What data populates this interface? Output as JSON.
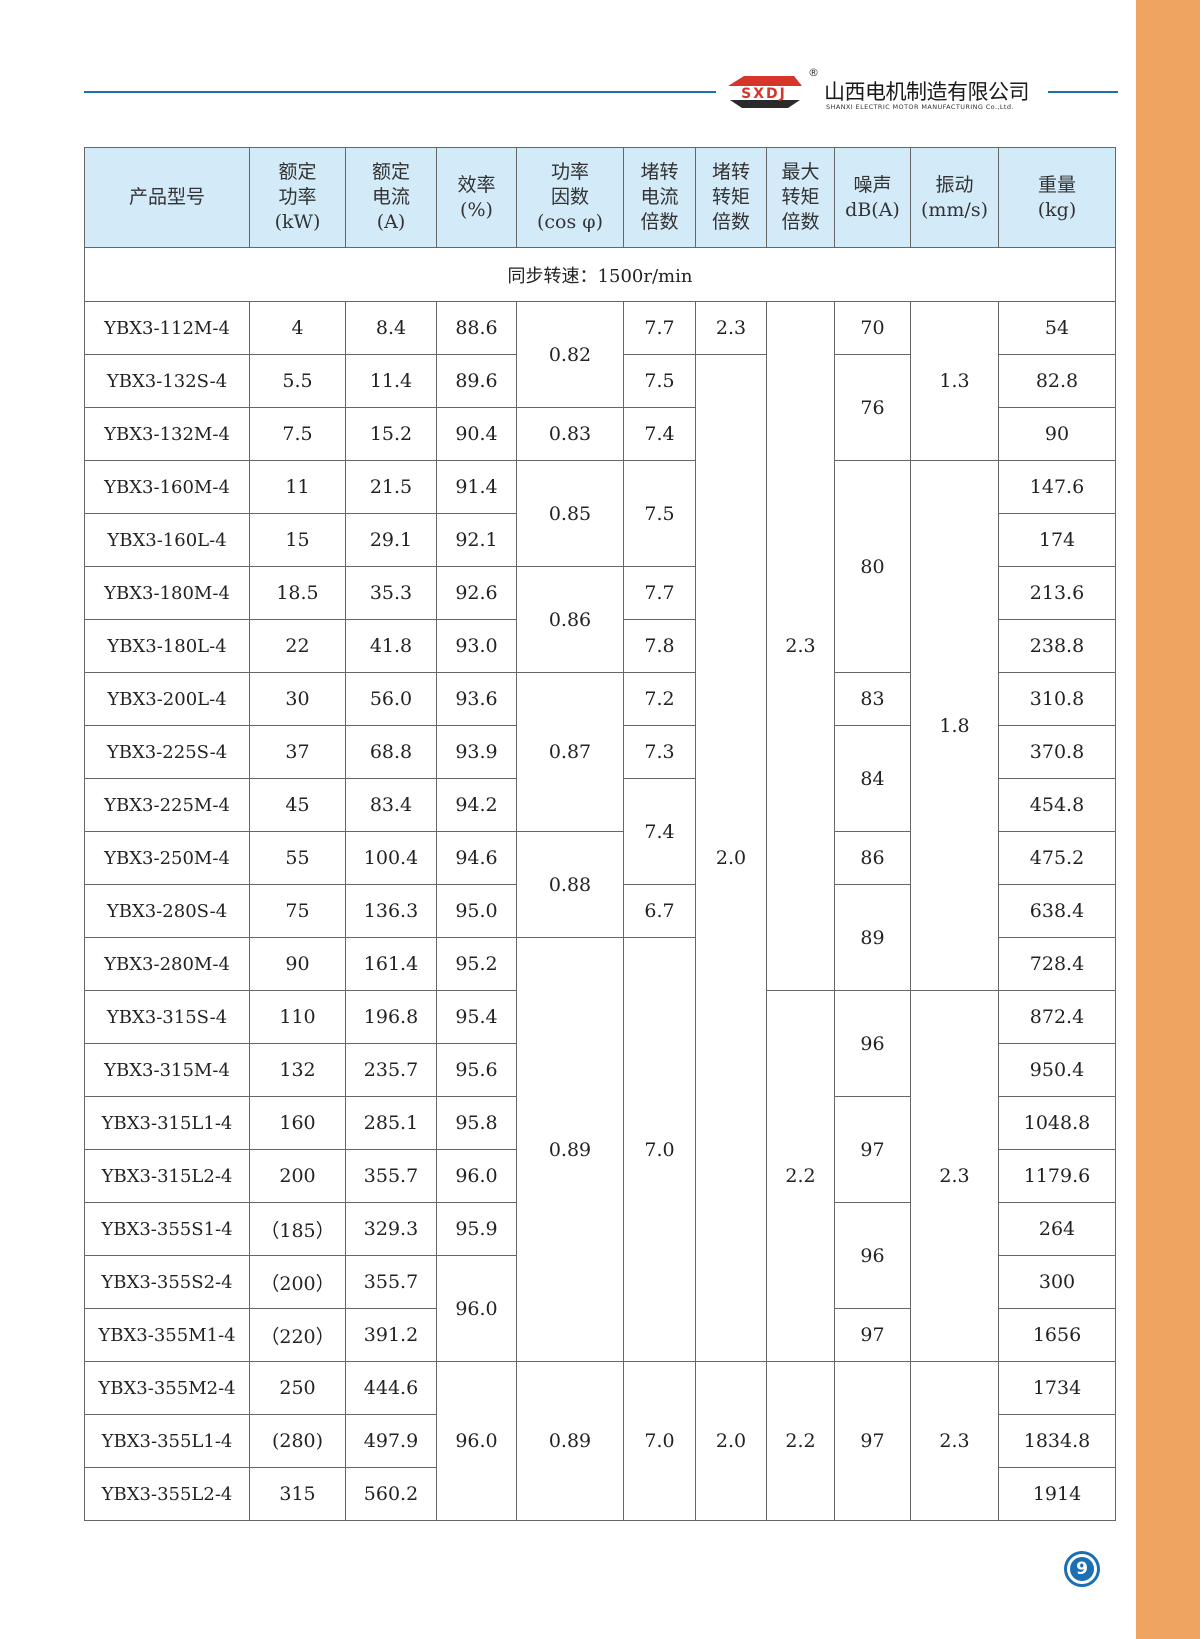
{
  "brand": {
    "logo_text": "SXDJ",
    "registered_mark": "®",
    "company_cn": "山西电机制造有限公司",
    "company_en": "SHANXI ELECTRIC MOTOR MANUFACTURING Co.,Ltd.",
    "colors": {
      "accent_blue": "#1b6fb3",
      "logo_red": "#d8352a",
      "side_strip": "#f0a462",
      "header_bg": "#d3eaf8"
    }
  },
  "table": {
    "headers": [
      "产品型号",
      "额定\n功率\n(kW)",
      "额定\n电流\n(A)",
      "效率\n(%)",
      "功率\n因数\n(cos φ)",
      "堵转\n电流\n倍数",
      "堵转\n转矩\n倍数",
      "最大\n转矩\n倍数",
      "噪声\ndB(A)",
      "振动\n(mm/s)",
      "重量\n(kg)"
    ],
    "section_label": "同步转速：1500r/min",
    "columns": [
      {
        "key": "model",
        "groups": [
          [
            "YBX3-112M-4",
            1
          ],
          [
            "YBX3-132S-4",
            1
          ],
          [
            "YBX3-132M-4",
            1
          ],
          [
            "YBX3-160M-4",
            1
          ],
          [
            "YBX3-160L-4",
            1
          ],
          [
            "YBX3-180M-4",
            1
          ],
          [
            "YBX3-180L-4",
            1
          ],
          [
            "YBX3-200L-4",
            1
          ],
          [
            "YBX3-225S-4",
            1
          ],
          [
            "YBX3-225M-4",
            1
          ],
          [
            "YBX3-250M-4",
            1
          ],
          [
            "YBX3-280S-4",
            1
          ],
          [
            "YBX3-280M-4",
            1
          ],
          [
            "YBX3-315S-4",
            1
          ],
          [
            "YBX3-315M-4",
            1
          ],
          [
            "YBX3-315L1-4",
            1
          ],
          [
            "YBX3-315L2-4",
            1
          ],
          [
            "YBX3-355S1-4",
            1
          ],
          [
            "YBX3-355S2-4",
            1
          ],
          [
            "YBX3-355M1-4",
            1
          ],
          [
            "YBX3-355M2-4",
            1
          ],
          [
            "YBX3-355L1-4",
            1
          ],
          [
            "YBX3-355L2-4",
            1
          ]
        ]
      },
      {
        "key": "rated_power_kw",
        "groups": [
          [
            "4",
            1
          ],
          [
            "5.5",
            1
          ],
          [
            "7.5",
            1
          ],
          [
            "11",
            1
          ],
          [
            "15",
            1
          ],
          [
            "18.5",
            1
          ],
          [
            "22",
            1
          ],
          [
            "30",
            1
          ],
          [
            "37",
            1
          ],
          [
            "45",
            1
          ],
          [
            "55",
            1
          ],
          [
            "75",
            1
          ],
          [
            "90",
            1
          ],
          [
            "110",
            1
          ],
          [
            "132",
            1
          ],
          [
            "160",
            1
          ],
          [
            "200",
            1
          ],
          [
            "（185）",
            1
          ],
          [
            "（200）",
            1
          ],
          [
            "（220）",
            1
          ],
          [
            "250",
            1
          ],
          [
            "(280)",
            1
          ],
          [
            "315",
            1
          ]
        ]
      },
      {
        "key": "rated_current_a",
        "groups": [
          [
            "8.4",
            1
          ],
          [
            "11.4",
            1
          ],
          [
            "15.2",
            1
          ],
          [
            "21.5",
            1
          ],
          [
            "29.1",
            1
          ],
          [
            "35.3",
            1
          ],
          [
            "41.8",
            1
          ],
          [
            "56.0",
            1
          ],
          [
            "68.8",
            1
          ],
          [
            "83.4",
            1
          ],
          [
            "100.4",
            1
          ],
          [
            "136.3",
            1
          ],
          [
            "161.4",
            1
          ],
          [
            "196.8",
            1
          ],
          [
            "235.7",
            1
          ],
          [
            "285.1",
            1
          ],
          [
            "355.7",
            1
          ],
          [
            "329.3",
            1
          ],
          [
            "355.7",
            1
          ],
          [
            "391.2",
            1
          ],
          [
            "444.6",
            1
          ],
          [
            "497.9",
            1
          ],
          [
            "560.2",
            1
          ]
        ]
      },
      {
        "key": "efficiency_pct",
        "groups": [
          [
            "88.6",
            1
          ],
          [
            "89.6",
            1
          ],
          [
            "90.4",
            1
          ],
          [
            "91.4",
            1
          ],
          [
            "92.1",
            1
          ],
          [
            "92.6",
            1
          ],
          [
            "93.0",
            1
          ],
          [
            "93.6",
            1
          ],
          [
            "93.9",
            1
          ],
          [
            "94.2",
            1
          ],
          [
            "94.6",
            1
          ],
          [
            "95.0",
            1
          ],
          [
            "95.2",
            1
          ],
          [
            "95.4",
            1
          ],
          [
            "95.6",
            1
          ],
          [
            "95.8",
            1
          ],
          [
            "96.0",
            1
          ],
          [
            "95.9",
            1
          ],
          [
            "96.0",
            2
          ],
          [
            "96.0",
            3
          ]
        ]
      },
      {
        "key": "power_factor",
        "groups": [
          [
            "0.82",
            2
          ],
          [
            "0.83",
            1
          ],
          [
            "0.85",
            2
          ],
          [
            "0.86",
            2
          ],
          [
            "0.87",
            3
          ],
          [
            "0.88",
            2
          ],
          [
            "0.89",
            8
          ],
          [
            "0.89",
            3
          ]
        ]
      },
      {
        "key": "locked_rotor_current_ratio",
        "groups": [
          [
            "7.7",
            1
          ],
          [
            "7.5",
            1
          ],
          [
            "7.4",
            1
          ],
          [
            "7.5",
            2
          ],
          [
            "7.7",
            1
          ],
          [
            "7.8",
            1
          ],
          [
            "7.2",
            1
          ],
          [
            "7.3",
            1
          ],
          [
            "7.4",
            2
          ],
          [
            "6.7",
            1
          ],
          [
            "7.0",
            8
          ],
          [
            "7.0",
            3
          ]
        ]
      },
      {
        "key": "locked_rotor_torque_ratio",
        "groups": [
          [
            "2.3",
            1
          ],
          [
            "2.0",
            19
          ],
          [
            "2.0",
            3
          ]
        ]
      },
      {
        "key": "max_torque_ratio",
        "groups": [
          [
            "2.3",
            13
          ],
          [
            "2.2",
            7
          ],
          [
            "2.2",
            3
          ]
        ]
      },
      {
        "key": "noise_dba",
        "groups": [
          [
            "70",
            1
          ],
          [
            "76",
            2
          ],
          [
            "80",
            4
          ],
          [
            "83",
            1
          ],
          [
            "84",
            2
          ],
          [
            "86",
            1
          ],
          [
            "89",
            2
          ],
          [
            "96",
            2
          ],
          [
            "97",
            2
          ],
          [
            "96",
            2
          ],
          [
            "97",
            1
          ],
          [
            "97",
            3
          ]
        ]
      },
      {
        "key": "vibration_mm_s",
        "groups": [
          [
            "1.3",
            3
          ],
          [
            "1.8",
            10
          ],
          [
            "2.3",
            7
          ],
          [
            "2.3",
            3
          ]
        ]
      },
      {
        "key": "weight_kg",
        "groups": [
          [
            "54",
            1
          ],
          [
            "82.8",
            1
          ],
          [
            "90",
            1
          ],
          [
            "147.6",
            1
          ],
          [
            "174",
            1
          ],
          [
            "213.6",
            1
          ],
          [
            "238.8",
            1
          ],
          [
            "310.8",
            1
          ],
          [
            "370.8",
            1
          ],
          [
            "454.8",
            1
          ],
          [
            "475.2",
            1
          ],
          [
            "638.4",
            1
          ],
          [
            "728.4",
            1
          ],
          [
            "872.4",
            1
          ],
          [
            "950.4",
            1
          ],
          [
            "1048.8",
            1
          ],
          [
            "1179.6",
            1
          ],
          [
            "264",
            1
          ],
          [
            "300",
            1
          ],
          [
            "1656",
            1
          ],
          [
            "1734",
            1
          ],
          [
            "1834.8",
            1
          ],
          [
            "1914",
            1
          ]
        ]
      }
    ]
  },
  "footer": {
    "page_number": "9"
  }
}
